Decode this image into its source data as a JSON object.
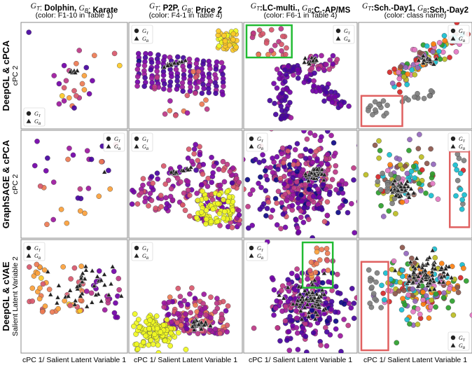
{
  "figure": {
    "columns": [
      {
        "title_parts": [
          {
            "t": "G",
            "sub": "T"
          },
          {
            "t": ": "
          },
          {
            "t": "Dolphin, ",
            "b": true
          },
          {
            "t": "G",
            "sub": "B"
          },
          {
            "t": ": "
          },
          {
            "t": "Karate",
            "b": true
          }
        ],
        "subtitle": "(color: F1-10 in Table 1)"
      },
      {
        "title_parts": [
          {
            "t": "G",
            "sub": "T"
          },
          {
            "t": ": "
          },
          {
            "t": "P2P, ",
            "b": true
          },
          {
            "t": "G",
            "sub": "B"
          },
          {
            "t": ": "
          },
          {
            "t": "Price 2",
            "b": true
          }
        ],
        "subtitle": "(color: F4-1 in Table 4)"
      },
      {
        "title_parts": [
          {
            "t": "G",
            "sub": "T"
          },
          {
            "t": ":LC-multi., ",
            "b": true
          },
          {
            "t": "G",
            "sub": "B"
          },
          {
            "t": ":C.-AP/MS",
            "b": true
          }
        ],
        "subtitle": "(color: F6-1 in Table 4)"
      },
      {
        "title_parts": [
          {
            "t": "G",
            "sub": "T"
          },
          {
            "t": ":Sch.-Day1, ",
            "b": true
          },
          {
            "t": "G",
            "sub": "B"
          },
          {
            "t": ":Sch.-Day2",
            "b": true
          }
        ],
        "subtitle": "(color: class name)"
      }
    ],
    "rows": [
      {
        "label": "DeepGL & cPCA",
        "ylabel": "cPC 2"
      },
      {
        "label": "GraphSAGE & cPCA",
        "ylabel": "cPC 2"
      },
      {
        "label": "DeepGL & cVAE",
        "ylabel": "Salient Latent Variable 2"
      }
    ],
    "xlabel": "cPC 1/ Salient Latent Variable 1",
    "legend": {
      "gt": "G",
      "gt_sub": "T",
      "gb": "G",
      "gb_sub": "B"
    },
    "colors": {
      "plasma": [
        "#0d0887",
        "#46039f",
        "#7201a8",
        "#9c179e",
        "#bd3786",
        "#d8576b",
        "#ed7953",
        "#fb9f3a",
        "#fdca26",
        "#f0f921"
      ],
      "school_classes": [
        "#7f7f7f",
        "#17becf",
        "#2ca02c",
        "#d62728",
        "#ff7f0e",
        "#9467bd",
        "#8c564b",
        "#e377c2",
        "#bcbd22"
      ],
      "highlight_green": "#22bb33",
      "highlight_red": "#e06060",
      "triangle": "#222222"
    }
  },
  "chart_data": [
    {
      "type": "scatter",
      "row": 0,
      "col": 0,
      "legend": "bottom-left",
      "gt_points": [
        [
          0.05,
          0.93
        ],
        [
          0.55,
          0.75
        ],
        [
          0.7,
          0.7
        ],
        [
          0.4,
          0.6
        ],
        [
          0.45,
          0.55
        ],
        [
          0.6,
          0.5
        ],
        [
          0.35,
          0.42
        ],
        [
          0.4,
          0.38
        ],
        [
          0.38,
          0.3
        ],
        [
          0.35,
          0.22
        ],
        [
          0.48,
          0.2
        ],
        [
          0.5,
          0.18
        ],
        [
          0.55,
          0.28
        ],
        [
          0.6,
          0.36
        ],
        [
          0.65,
          0.32
        ],
        [
          0.9,
          0.72
        ],
        [
          0.95,
          0.6
        ],
        [
          0.3,
          0.5
        ],
        [
          0.52,
          0.62
        ],
        [
          0.62,
          0.58
        ],
        [
          0.42,
          0.45
        ],
        [
          0.58,
          0.42
        ],
        [
          0.68,
          0.45
        ],
        [
          0.5,
          0.35
        ],
        [
          0.45,
          0.28
        ],
        [
          0.4,
          0.25
        ],
        [
          0.52,
          0.3
        ]
      ],
      "gb_points": [
        [
          0.47,
          0.55
        ],
        [
          0.5,
          0.55
        ],
        [
          0.53,
          0.55
        ],
        [
          0.48,
          0.53
        ],
        [
          0.51,
          0.53
        ],
        [
          0.46,
          0.54
        ]
      ],
      "tri_mode": "cluster"
    },
    {
      "type": "scatter",
      "row": 0,
      "col": 1,
      "legend": "top-left",
      "tri_mode": "band"
    },
    {
      "type": "scatter",
      "row": 0,
      "col": 2,
      "legend": "top-right",
      "highlight": {
        "color": "green",
        "box": [
          0.0,
          0.68,
          0.42,
          1.0
        ]
      },
      "tri_mode": "cluster"
    },
    {
      "type": "scatter",
      "row": 0,
      "col": 3,
      "legend": "top-right",
      "highlight": {
        "color": "red",
        "box": [
          0.0,
          0.0,
          0.38,
          0.3
        ]
      },
      "tri_mode": "cluster"
    },
    {
      "type": "scatter",
      "row": 1,
      "col": 0,
      "legend": "top-right",
      "tri_mode": "single"
    },
    {
      "type": "scatter",
      "row": 1,
      "col": 1,
      "legend": "top-left",
      "tri_mode": "band"
    },
    {
      "type": "scatter",
      "row": 1,
      "col": 2,
      "legend": "top-left",
      "tri_mode": "cluster"
    },
    {
      "type": "scatter",
      "row": 1,
      "col": 3,
      "legend": "top-right",
      "highlight": {
        "color": "red",
        "box": [
          0.82,
          0.08,
          1.0,
          0.82
        ]
      },
      "tri_mode": "cluster"
    },
    {
      "type": "scatter",
      "row": 2,
      "col": 0,
      "legend": "top-left",
      "tri_mode": "spread"
    },
    {
      "type": "scatter",
      "row": 2,
      "col": 1,
      "legend": "top-left",
      "tri_mode": "cluster"
    },
    {
      "type": "scatter",
      "row": 2,
      "col": 2,
      "legend": "top-left",
      "highlight": {
        "color": "green",
        "box": [
          0.52,
          0.58,
          0.8,
          1.0
        ]
      },
      "tri_mode": "spread"
    },
    {
      "type": "scatter",
      "row": 2,
      "col": 3,
      "legend": "bottom-right",
      "highlight": {
        "color": "red",
        "box": [
          0.0,
          0.0,
          0.25,
          0.82
        ]
      },
      "tri_mode": "spread"
    }
  ]
}
